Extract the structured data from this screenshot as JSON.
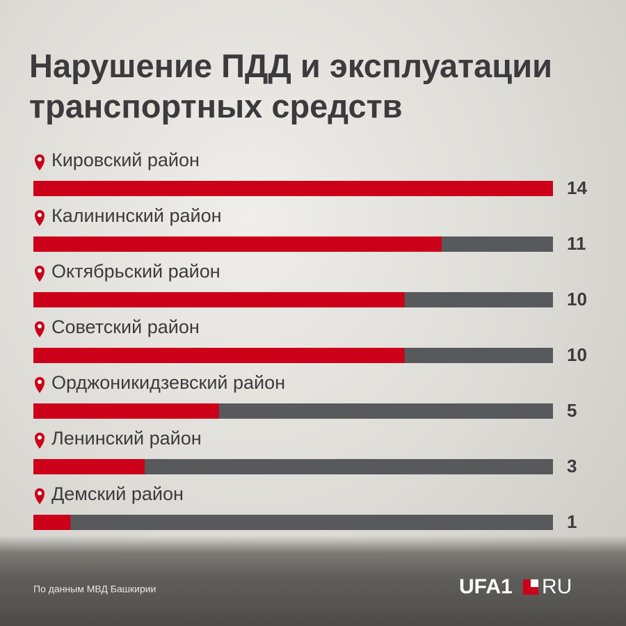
{
  "chart_data": {
    "type": "hbar",
    "title": "Нарушение ПДД и эксплуатации транспортных средств",
    "categories": [
      "Кировский район",
      "Калининский район",
      "Октябрьский район",
      "Советский район",
      "Орджоникидзевский район",
      "Ленинский район",
      "Демский район"
    ],
    "values": [
      14,
      11,
      10,
      10,
      5,
      3,
      1
    ],
    "color": "#cc0018",
    "track_color": "#58595b",
    "xlim": [
      0,
      14
    ],
    "source": "По данным МВД Башкирии"
  },
  "logo": {
    "main": "UFA1",
    "suffix": "RU"
  }
}
